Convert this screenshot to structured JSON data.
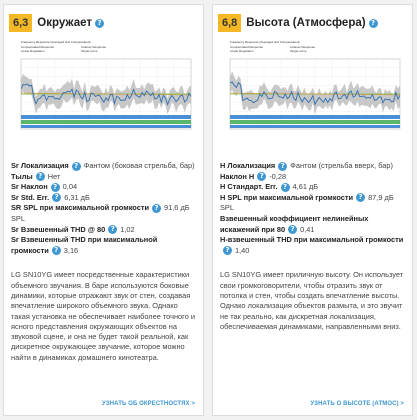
{
  "left": {
    "score": "6,3",
    "title": "Окружает",
    "chart_legend": [
      "Frequency Response (Averaged and Compensated)",
      "Compensated Response",
      "Listener Response",
      "Linear Regulation",
      "Target curve"
    ],
    "specs": [
      {
        "label": "Sr Локализация",
        "value": "Фантом (боковая стрельба, бар)"
      },
      {
        "label": "Тылы",
        "value": "Нет"
      },
      {
        "label": "Sr Наклон",
        "value": "0,04"
      },
      {
        "label": "Sr Std. Err.",
        "value": "6,31 дБ"
      },
      {
        "label": "SR SPL при максимальной громкости",
        "value": "91,6 дБ SPL"
      },
      {
        "label": "Sr Взвешенный THD @ 80",
        "value": "1,02"
      },
      {
        "label": "Sr Взвешенный THD при максимальной громкости",
        "value": "3,16"
      }
    ],
    "description": "LG SN10YG имеет посредственные характеристики объемного звучания. В баре используются боковые динамики, которые отражают звук от стен, создавая впечатление широкого объемного звука. Однако такая установка не обеспечивает наиболее точного и ясного представления окружающих объектов на звуковой сцене, и она не будет такой реальной, как дискретное окружающее звучание, которое можно найти в динамиках домашнего кинотеатра.",
    "link": "УЗНАТЬ ОБ ОКРЕСТНОСТЯХ >"
  },
  "right": {
    "score": "6,8",
    "title": "Высота (Атмосфера)",
    "chart_legend": [
      "Frequency Response (Averaged and Compensated)",
      "Compensated Response",
      "Listener Response",
      "Linear Regulation",
      "Target curve"
    ],
    "specs": [
      {
        "label": "H Локализация",
        "value": "Фантом (стрельба вверх, бар)"
      },
      {
        "label": "Наклон H",
        "value": "-0,28"
      },
      {
        "label": "H Стандарт. Err.",
        "value": "4,61 дБ"
      },
      {
        "label": "H SPL при максимальной громкости",
        "value": "87,9 дБ SPL"
      },
      {
        "label": "Взвешенный коэффициент нелинейных искажений при 80",
        "value": "0,41"
      },
      {
        "label": "H-взвешенный THD при максимальной громкости",
        "value": "1,40"
      }
    ],
    "description": "LG SN10YG имеет приличную высоту. Он использует свои громкоговорители, чтобы отразить звук от потолка и стен, чтобы создать впечатление высоты. Однако локализация объектов размыта, и это звучит не так реально, как дискретная локализация, обеспечиваемая динамиками, направленными вниз.",
    "link": "УЗНАТЬ О ВЫСОТЕ (АТМОС) >"
  },
  "colors": {
    "score_bg": "#f3b824",
    "accent": "#3e97d1",
    "curve": "#2f6fb0",
    "band": "#b5b5b5",
    "target": "#7cc242",
    "regression": "#e38a2f",
    "strip_blue": "#4a8fd6",
    "strip_green": "#5bb56a"
  }
}
